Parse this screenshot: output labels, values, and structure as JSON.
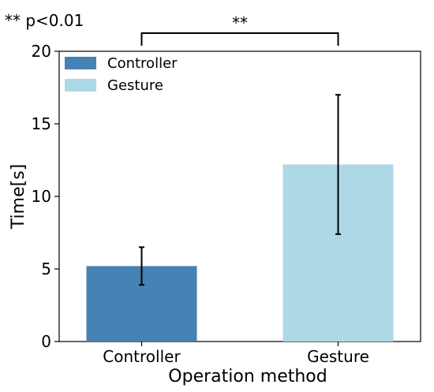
{
  "chart_data": {
    "type": "bar",
    "categories": [
      "Controller",
      "Gesture"
    ],
    "values": [
      5.2,
      12.2
    ],
    "errors": [
      1.3,
      4.8
    ],
    "colors": [
      "#4682b4",
      "#add8e6"
    ],
    "xlabel": "Operation method",
    "ylabel": "Time[s]",
    "ylim": [
      0,
      20
    ],
    "yticks": [
      0,
      5,
      10,
      15,
      20
    ],
    "legend": {
      "placement": "top-left",
      "entries": [
        {
          "label": "Controller",
          "color": "#4682b4"
        },
        {
          "label": "Gesture",
          "color": "#add8e6"
        }
      ]
    },
    "annotations": {
      "significance_note": "** p<0.01",
      "bracket_label": "**"
    },
    "grid": false
  }
}
